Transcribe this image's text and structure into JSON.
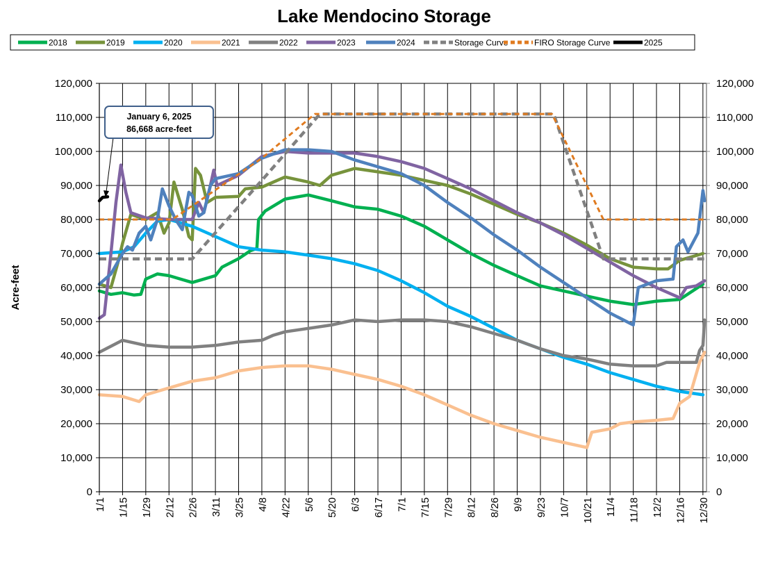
{
  "chart_data": {
    "type": "line",
    "title": "Lake Mendocino Storage",
    "ylabel": "Acre-feet",
    "xlabel": "",
    "ylim": [
      0,
      120000
    ],
    "yticks": [
      0,
      10000,
      20000,
      30000,
      40000,
      50000,
      60000,
      70000,
      80000,
      90000,
      100000,
      110000,
      120000
    ],
    "ytick_labels": [
      "0",
      "10,000",
      "20,000",
      "30,000",
      "40,000",
      "50,000",
      "60,000",
      "70,000",
      "80,000",
      "90,000",
      "100,000",
      "110,000",
      "120,000"
    ],
    "xtick_labels": [
      "1/1",
      "1/15",
      "1/29",
      "2/12",
      "2/26",
      "3/11",
      "3/25",
      "4/8",
      "4/22",
      "5/6",
      "5/20",
      "6/3",
      "6/17",
      "7/1",
      "7/15",
      "7/29",
      "8/12",
      "8/26",
      "9/9",
      "9/23",
      "10/7",
      "10/21",
      "11/4",
      "11/18",
      "12/2",
      "12/16",
      "12/30"
    ],
    "grid": true,
    "secondary_y_axis": true,
    "legend_position": "top",
    "annotation": {
      "line1": "January 6, 2025",
      "line2": "86,668 acre-feet",
      "x": "1/6",
      "y": 86668
    },
    "series": [
      {
        "name": "2018",
        "color": "#00b050",
        "style": "solid",
        "points": [
          [
            "1/1",
            59000
          ],
          [
            "1/8",
            58000
          ],
          [
            "1/15",
            58500
          ],
          [
            "1/22",
            57800
          ],
          [
            "1/26",
            58000
          ],
          [
            "1/29",
            62500
          ],
          [
            "2/5",
            64000
          ],
          [
            "2/12",
            63500
          ],
          [
            "2/26",
            61500
          ],
          [
            "3/4",
            62500
          ],
          [
            "3/11",
            63500
          ],
          [
            "3/15",
            66000
          ],
          [
            "3/25",
            68500
          ],
          [
            "4/1",
            70800
          ],
          [
            "4/5",
            71500
          ],
          [
            "4/6",
            80000
          ],
          [
            "4/10",
            82500
          ],
          [
            "4/22",
            86000
          ],
          [
            "5/6",
            87200
          ],
          [
            "5/20",
            85500
          ],
          [
            "6/3",
            83700
          ],
          [
            "6/17",
            83000
          ],
          [
            "7/1",
            81000
          ],
          [
            "7/15",
            78000
          ],
          [
            "7/29",
            74000
          ],
          [
            "8/12",
            70000
          ],
          [
            "8/26",
            66500
          ],
          [
            "9/9",
            63500
          ],
          [
            "9/23",
            60500
          ],
          [
            "10/7",
            59000
          ],
          [
            "10/21",
            57500
          ],
          [
            "11/4",
            56000
          ],
          [
            "11/18",
            55000
          ],
          [
            "12/2",
            56000
          ],
          [
            "12/16",
            56500
          ],
          [
            "12/30",
            61000
          ]
        ]
      },
      {
        "name": "2019",
        "color": "#77933c",
        "style": "solid",
        "points": [
          [
            "1/1",
            61000
          ],
          [
            "1/8",
            60000
          ],
          [
            "1/12",
            67000
          ],
          [
            "1/15",
            73000
          ],
          [
            "1/20",
            81500
          ],
          [
            "1/29",
            80000
          ],
          [
            "2/5",
            82000
          ],
          [
            "2/9",
            76000
          ],
          [
            "2/12",
            79000
          ],
          [
            "2/15",
            91000
          ],
          [
            "2/20",
            83000
          ],
          [
            "2/24",
            75000
          ],
          [
            "2/26",
            74000
          ],
          [
            "2/28",
            95000
          ],
          [
            "3/2",
            93000
          ],
          [
            "3/6",
            85000
          ],
          [
            "3/11",
            86500
          ],
          [
            "3/25",
            86800
          ],
          [
            "3/29",
            89000
          ],
          [
            "4/8",
            89500
          ],
          [
            "4/22",
            92500
          ],
          [
            "5/6",
            91000
          ],
          [
            "5/13",
            90000
          ],
          [
            "5/20",
            93000
          ],
          [
            "6/3",
            95000
          ],
          [
            "6/17",
            94000
          ],
          [
            "7/1",
            93000
          ],
          [
            "7/15",
            91500
          ],
          [
            "7/29",
            90000
          ],
          [
            "8/12",
            87500
          ],
          [
            "8/26",
            84500
          ],
          [
            "9/9",
            81500
          ],
          [
            "9/23",
            79000
          ],
          [
            "10/7",
            76000
          ],
          [
            "10/21",
            72500
          ],
          [
            "11/4",
            68500
          ],
          [
            "11/18",
            66000
          ],
          [
            "12/2",
            65500
          ],
          [
            "12/9",
            65500
          ],
          [
            "12/16",
            68000
          ],
          [
            "12/30",
            70000
          ]
        ]
      },
      {
        "name": "2020",
        "color": "#00b0f0",
        "style": "solid",
        "points": [
          [
            "1/1",
            70000
          ],
          [
            "1/15",
            70500
          ],
          [
            "1/22",
            72000
          ],
          [
            "1/29",
            76000
          ],
          [
            "2/5",
            79500
          ],
          [
            "2/12",
            80000
          ],
          [
            "2/26",
            78000
          ],
          [
            "3/11",
            75000
          ],
          [
            "3/25",
            72000
          ],
          [
            "4/8",
            71000
          ],
          [
            "4/22",
            70500
          ],
          [
            "5/6",
            69500
          ],
          [
            "5/20",
            68500
          ],
          [
            "6/3",
            67000
          ],
          [
            "6/17",
            65000
          ],
          [
            "7/1",
            62000
          ],
          [
            "7/15",
            58500
          ],
          [
            "7/29",
            54500
          ],
          [
            "8/12",
            51500
          ],
          [
            "8/26",
            48000
          ],
          [
            "9/9",
            44500
          ],
          [
            "9/23",
            42000
          ],
          [
            "10/7",
            39500
          ],
          [
            "10/21",
            37500
          ],
          [
            "11/4",
            35000
          ],
          [
            "11/18",
            33000
          ],
          [
            "12/2",
            31000
          ],
          [
            "12/16",
            29500
          ],
          [
            "12/30",
            28500
          ]
        ]
      },
      {
        "name": "2021",
        "color": "#fac090",
        "style": "solid",
        "points": [
          [
            "1/1",
            28500
          ],
          [
            "1/15",
            28000
          ],
          [
            "1/25",
            26500
          ],
          [
            "1/29",
            28500
          ],
          [
            "2/12",
            30500
          ],
          [
            "2/26",
            32500
          ],
          [
            "3/11",
            33500
          ],
          [
            "3/25",
            35500
          ],
          [
            "4/8",
            36500
          ],
          [
            "4/22",
            37000
          ],
          [
            "5/6",
            37000
          ],
          [
            "5/20",
            36000
          ],
          [
            "6/3",
            34500
          ],
          [
            "6/17",
            33000
          ],
          [
            "7/1",
            31000
          ],
          [
            "7/15",
            28500
          ],
          [
            "7/29",
            25500
          ],
          [
            "8/12",
            22500
          ],
          [
            "8/26",
            20000
          ],
          [
            "9/9",
            18000
          ],
          [
            "9/23",
            16000
          ],
          [
            "10/7",
            14500
          ],
          [
            "10/21",
            13000
          ],
          [
            "10/24",
            17500
          ],
          [
            "11/4",
            18500
          ],
          [
            "11/10",
            20000
          ],
          [
            "11/18",
            20500
          ],
          [
            "12/2",
            21000
          ],
          [
            "12/12",
            21500
          ],
          [
            "12/16",
            26000
          ],
          [
            "12/22",
            28000
          ],
          [
            "12/28",
            38000
          ],
          [
            "12/31",
            41000
          ]
        ]
      },
      {
        "name": "2022",
        "color": "#808080",
        "style": "solid",
        "points": [
          [
            "1/1",
            41000
          ],
          [
            "1/15",
            44500
          ],
          [
            "1/29",
            43000
          ],
          [
            "2/12",
            42500
          ],
          [
            "2/26",
            42500
          ],
          [
            "3/11",
            43000
          ],
          [
            "3/25",
            44000
          ],
          [
            "4/8",
            44500
          ],
          [
            "4/15",
            46000
          ],
          [
            "4/22",
            47000
          ],
          [
            "5/6",
            48000
          ],
          [
            "5/20",
            49000
          ],
          [
            "6/3",
            50500
          ],
          [
            "6/17",
            50000
          ],
          [
            "7/1",
            50500
          ],
          [
            "7/15",
            50500
          ],
          [
            "7/29",
            50000
          ],
          [
            "8/12",
            48500
          ],
          [
            "8/26",
            46500
          ],
          [
            "9/9",
            44500
          ],
          [
            "9/23",
            42000
          ],
          [
            "10/7",
            40000
          ],
          [
            "10/21",
            39000
          ],
          [
            "11/4",
            37500
          ],
          [
            "11/18",
            37000
          ],
          [
            "12/2",
            37000
          ],
          [
            "12/8",
            38000
          ],
          [
            "12/26",
            38000
          ],
          [
            "12/28",
            41500
          ],
          [
            "12/30",
            43000
          ],
          [
            "12/31",
            50500
          ]
        ]
      },
      {
        "name": "2023",
        "color": "#8064a2",
        "style": "solid",
        "points": [
          [
            "1/1",
            51000
          ],
          [
            "1/4",
            52000
          ],
          [
            "1/8",
            70000
          ],
          [
            "1/11",
            85000
          ],
          [
            "1/14",
            96000
          ],
          [
            "1/17",
            88000
          ],
          [
            "1/20",
            82000
          ],
          [
            "1/29",
            80500
          ],
          [
            "2/12",
            80000
          ],
          [
            "2/26",
            80000
          ],
          [
            "3/1",
            85000
          ],
          [
            "3/4",
            82000
          ],
          [
            "3/8",
            90000
          ],
          [
            "3/10",
            94500
          ],
          [
            "3/12",
            90000
          ],
          [
            "3/25",
            93000
          ],
          [
            "4/8",
            98500
          ],
          [
            "4/22",
            100000
          ],
          [
            "5/6",
            99500
          ],
          [
            "5/20",
            99500
          ],
          [
            "6/3",
            99500
          ],
          [
            "6/17",
            98500
          ],
          [
            "7/1",
            97000
          ],
          [
            "7/15",
            95000
          ],
          [
            "7/29",
            92000
          ],
          [
            "8/12",
            89000
          ],
          [
            "8/26",
            85500
          ],
          [
            "9/9",
            82000
          ],
          [
            "9/23",
            79000
          ],
          [
            "10/7",
            75500
          ],
          [
            "10/21",
            71500
          ],
          [
            "11/4",
            67500
          ],
          [
            "11/18",
            63500
          ],
          [
            "12/2",
            60000
          ],
          [
            "12/16",
            57000
          ],
          [
            "12/20",
            60000
          ],
          [
            "12/26",
            60500
          ],
          [
            "12/31",
            62000
          ]
        ]
      },
      {
        "name": "2024",
        "color": "#4f81bd",
        "style": "solid",
        "points": [
          [
            "1/1",
            61000
          ],
          [
            "1/8",
            64000
          ],
          [
            "1/15",
            70000
          ],
          [
            "1/18",
            72000
          ],
          [
            "1/21",
            71000
          ],
          [
            "1/25",
            76000
          ],
          [
            "1/29",
            78000
          ],
          [
            "2/1",
            74000
          ],
          [
            "2/5",
            80000
          ],
          [
            "2/8",
            89000
          ],
          [
            "2/12",
            84000
          ],
          [
            "2/16",
            80000
          ],
          [
            "2/20",
            77000
          ],
          [
            "2/24",
            88000
          ],
          [
            "2/26",
            87000
          ],
          [
            "3/1",
            81000
          ],
          [
            "3/4",
            82000
          ],
          [
            "3/8",
            90000
          ],
          [
            "3/11",
            92000
          ],
          [
            "3/25",
            93500
          ],
          [
            "4/8",
            98000
          ],
          [
            "4/22",
            100500
          ],
          [
            "5/6",
            100500
          ],
          [
            "5/20",
            100000
          ],
          [
            "6/3",
            97500
          ],
          [
            "6/17",
            95500
          ],
          [
            "7/1",
            93500
          ],
          [
            "7/15",
            90000
          ],
          [
            "7/29",
            85000
          ],
          [
            "8/12",
            80500
          ],
          [
            "8/26",
            75500
          ],
          [
            "9/9",
            71000
          ],
          [
            "9/23",
            66000
          ],
          [
            "10/7",
            61500
          ],
          [
            "10/21",
            57000
          ],
          [
            "11/4",
            52500
          ],
          [
            "11/18",
            49000
          ],
          [
            "11/21",
            60000
          ],
          [
            "12/2",
            62000
          ],
          [
            "12/12",
            62500
          ],
          [
            "12/14",
            72000
          ],
          [
            "12/18",
            74000
          ],
          [
            "12/21",
            70500
          ],
          [
            "12/27",
            76000
          ],
          [
            "12/30",
            88500
          ],
          [
            "12/31",
            85500
          ]
        ]
      },
      {
        "name": "Storage Curve",
        "color": "#808080",
        "style": "dashed",
        "points": [
          [
            "1/1",
            68400
          ],
          [
            "2/26",
            68400
          ],
          [
            "4/8",
            91500
          ],
          [
            "5/13",
            111000
          ],
          [
            "10/1",
            111000
          ],
          [
            "10/31",
            68400
          ],
          [
            "12/31",
            68400
          ]
        ]
      },
      {
        "name": "FIRO Storage Curve",
        "color": "#e07b20",
        "style": "dotted",
        "points": [
          [
            "1/1",
            80000
          ],
          [
            "2/14",
            80000
          ],
          [
            "4/8",
            98000
          ],
          [
            "5/10",
            111000
          ],
          [
            "9/30",
            111000
          ],
          [
            "10/31",
            80000
          ],
          [
            "12/31",
            80000
          ]
        ]
      },
      {
        "name": "2025",
        "color": "#000000",
        "style": "solid",
        "points": [
          [
            "1/1",
            85500
          ],
          [
            "1/3",
            86500
          ],
          [
            "1/6",
            86668
          ]
        ]
      }
    ]
  }
}
